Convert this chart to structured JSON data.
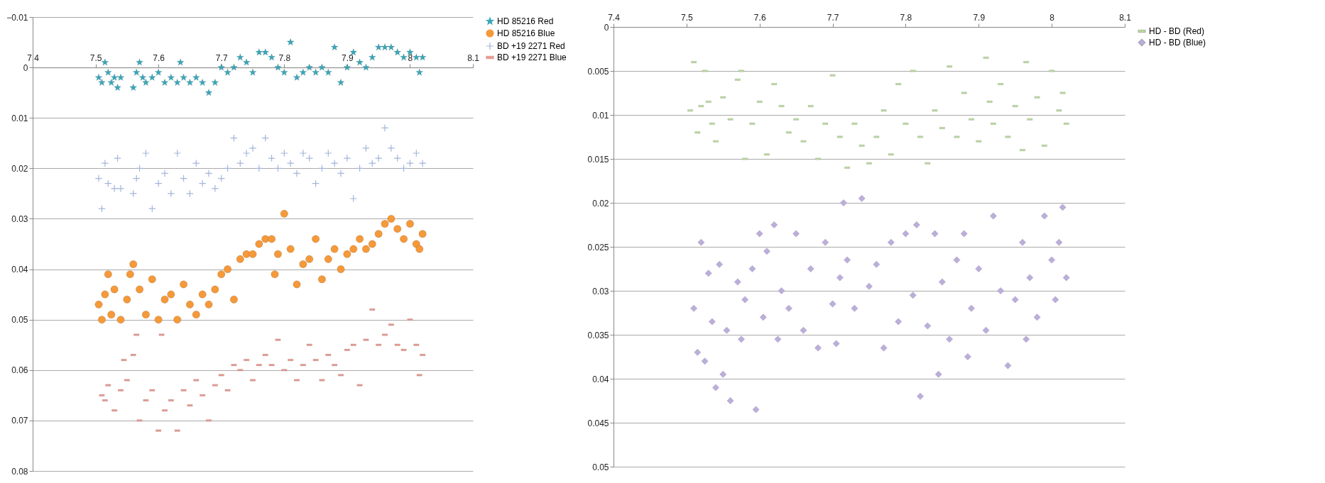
{
  "chart_data": [
    {
      "type": "scatter",
      "xlim": [
        7.4,
        8.1
      ],
      "xticks": [
        7.4,
        7.5,
        7.6,
        7.7,
        7.8,
        7.9,
        8,
        8.1
      ],
      "ylim": [
        0.08,
        -0.01
      ],
      "yticks": [
        -0.01,
        0,
        0.01,
        0.02,
        0.03,
        0.04,
        0.05,
        0.06,
        0.07,
        0.08
      ],
      "grid": "y",
      "legend": "right",
      "series": [
        {
          "name": "HD 85216 Red",
          "color": "#3aa6b9",
          "marker": "star",
          "x": [
            7.505,
            7.51,
            7.515,
            7.52,
            7.525,
            7.53,
            7.535,
            7.54,
            7.56,
            7.565,
            7.57,
            7.575,
            7.58,
            7.59,
            7.6,
            7.61,
            7.62,
            7.63,
            7.635,
            7.64,
            7.65,
            7.66,
            7.67,
            7.68,
            7.69,
            7.7,
            7.71,
            7.72,
            7.73,
            7.74,
            7.75,
            7.76,
            7.77,
            7.78,
            7.79,
            7.8,
            7.81,
            7.82,
            7.83,
            7.84,
            7.85,
            7.86,
            7.87,
            7.88,
            7.89,
            7.9,
            7.91,
            7.92,
            7.93,
            7.94,
            7.95,
            7.96,
            7.97,
            7.98,
            7.99,
            8,
            8.01,
            8.015,
            8.02
          ],
          "values": [
            0.002,
            0.003,
            -0.001,
            0.001,
            0.003,
            0.002,
            0.004,
            0.002,
            0.004,
            0.001,
            -0.001,
            0.002,
            0.003,
            0.002,
            0.001,
            0.003,
            0.002,
            0.003,
            -0.001,
            0.002,
            0.003,
            0.002,
            0.003,
            0.005,
            0.003,
            0,
            0.001,
            0,
            -0.002,
            -0.001,
            0.001,
            -0.003,
            -0.003,
            -0.002,
            0,
            0.001,
            -0.005,
            0.002,
            0.001,
            0,
            0.001,
            0,
            0.001,
            -0.004,
            0.003,
            0,
            -0.003,
            -0.001,
            0,
            -0.002,
            -0.004,
            -0.004,
            -0.004,
            -0.003,
            -0.002,
            -0.003,
            -0.002,
            0.001,
            -0.002
          ]
        },
        {
          "name": "HD 85216 Blue",
          "color": "#f5993a",
          "marker": "circle",
          "x": [
            7.505,
            7.51,
            7.515,
            7.52,
            7.525,
            7.53,
            7.54,
            7.55,
            7.555,
            7.56,
            7.57,
            7.58,
            7.59,
            7.6,
            7.61,
            7.62,
            7.63,
            7.64,
            7.65,
            7.66,
            7.67,
            7.68,
            7.69,
            7.7,
            7.71,
            7.72,
            7.73,
            7.74,
            7.75,
            7.76,
            7.77,
            7.78,
            7.785,
            7.79,
            7.8,
            7.81,
            7.82,
            7.83,
            7.84,
            7.85,
            7.86,
            7.87,
            7.88,
            7.89,
            7.9,
            7.91,
            7.92,
            7.93,
            7.94,
            7.95,
            7.96,
            7.97,
            7.98,
            7.99,
            8,
            8.01,
            8.015,
            8.02
          ],
          "values": [
            0.047,
            0.05,
            0.045,
            0.041,
            0.049,
            0.044,
            0.05,
            0.046,
            0.041,
            0.039,
            0.044,
            0.049,
            0.042,
            0.05,
            0.046,
            0.045,
            0.05,
            0.043,
            0.047,
            0.049,
            0.045,
            0.047,
            0.044,
            0.041,
            0.04,
            0.046,
            0.038,
            0.037,
            0.037,
            0.035,
            0.034,
            0.034,
            0.041,
            0.037,
            0.029,
            0.036,
            0.043,
            0.039,
            0.038,
            0.034,
            0.042,
            0.038,
            0.036,
            0.04,
            0.037,
            0.036,
            0.034,
            0.036,
            0.035,
            0.033,
            0.031,
            0.03,
            0.032,
            0.034,
            0.031,
            0.035,
            0.036,
            0.033
          ]
        },
        {
          "name": "BD +19 2271 Red",
          "color": "#a3b5da",
          "marker": "cross",
          "x": [
            7.505,
            7.51,
            7.515,
            7.52,
            7.53,
            7.535,
            7.54,
            7.56,
            7.565,
            7.57,
            7.58,
            7.59,
            7.6,
            7.61,
            7.62,
            7.63,
            7.64,
            7.65,
            7.66,
            7.67,
            7.68,
            7.69,
            7.7,
            7.71,
            7.72,
            7.73,
            7.74,
            7.75,
            7.76,
            7.77,
            7.78,
            7.79,
            7.8,
            7.81,
            7.82,
            7.83,
            7.84,
            7.85,
            7.86,
            7.87,
            7.88,
            7.89,
            7.9,
            7.91,
            7.92,
            7.93,
            7.94,
            7.95,
            7.96,
            7.97,
            7.98,
            7.99,
            8,
            8.01,
            8.02
          ],
          "values": [
            0.022,
            0.028,
            0.019,
            0.023,
            0.024,
            0.018,
            0.024,
            0.025,
            0.022,
            0.02,
            0.017,
            0.028,
            0.023,
            0.021,
            0.025,
            0.017,
            0.022,
            0.025,
            0.019,
            0.023,
            0.021,
            0.024,
            0.022,
            0.02,
            0.014,
            0.019,
            0.017,
            0.016,
            0.02,
            0.014,
            0.018,
            0.02,
            0.017,
            0.019,
            0.021,
            0.017,
            0.018,
            0.023,
            0.02,
            0.017,
            0.019,
            0.021,
            0.018,
            0.026,
            0.02,
            0.016,
            0.019,
            0.018,
            0.012,
            0.016,
            0.018,
            0.02,
            0.019,
            0.017,
            0.019
          ]
        },
        {
          "name": "BD +19 2271 Blue",
          "color": "#e79a91",
          "marker": "square",
          "x": [
            7.51,
            7.515,
            7.52,
            7.53,
            7.54,
            7.545,
            7.55,
            7.56,
            7.565,
            7.57,
            7.58,
            7.59,
            7.6,
            7.605,
            7.61,
            7.62,
            7.63,
            7.64,
            7.65,
            7.66,
            7.67,
            7.68,
            7.69,
            7.7,
            7.71,
            7.72,
            7.73,
            7.74,
            7.75,
            7.76,
            7.77,
            7.78,
            7.79,
            7.8,
            7.81,
            7.82,
            7.83,
            7.84,
            7.85,
            7.86,
            7.87,
            7.88,
            7.89,
            7.9,
            7.91,
            7.92,
            7.93,
            7.94,
            7.95,
            7.96,
            7.97,
            7.98,
            7.99,
            8,
            8.01,
            8.015,
            8.02
          ],
          "values": [
            0.065,
            0.066,
            0.063,
            0.068,
            0.064,
            0.058,
            0.062,
            0.057,
            0.053,
            0.07,
            0.066,
            0.064,
            0.072,
            0.053,
            0.068,
            0.066,
            0.072,
            0.064,
            0.067,
            0.062,
            0.065,
            0.07,
            0.063,
            0.061,
            0.064,
            0.059,
            0.06,
            0.058,
            0.062,
            0.059,
            0.057,
            0.059,
            0.054,
            0.06,
            0.058,
            0.062,
            0.059,
            0.055,
            0.058,
            0.062,
            0.057,
            0.059,
            0.061,
            0.056,
            0.055,
            0.063,
            0.054,
            0.048,
            0.055,
            0.053,
            0.051,
            0.055,
            0.056,
            0.05,
            0.055,
            0.061,
            0.057
          ]
        }
      ]
    },
    {
      "type": "scatter",
      "xlim": [
        7.4,
        8.1
      ],
      "xticks": [
        7.4,
        7.5,
        7.6,
        7.7,
        7.8,
        7.9,
        8,
        8.1
      ],
      "ylim": [
        0.05,
        0
      ],
      "yticks": [
        0,
        0.005,
        0.01,
        0.015,
        0.02,
        0.025,
        0.03,
        0.035,
        0.04,
        0.045,
        0.05
      ],
      "grid": "y",
      "legend": "right",
      "series": [
        {
          "name": "HD - BD (Red)",
          "color": "#bcd9a0",
          "marker": "square",
          "x": [
            7.505,
            7.51,
            7.515,
            7.52,
            7.525,
            7.53,
            7.535,
            7.54,
            7.55,
            7.56,
            7.57,
            7.575,
            7.58,
            7.59,
            7.6,
            7.61,
            7.62,
            7.63,
            7.64,
            7.65,
            7.66,
            7.67,
            7.68,
            7.69,
            7.7,
            7.71,
            7.72,
            7.73,
            7.74,
            7.75,
            7.76,
            7.77,
            7.78,
            7.79,
            7.8,
            7.81,
            7.82,
            7.83,
            7.84,
            7.85,
            7.86,
            7.87,
            7.88,
            7.89,
            7.9,
            7.91,
            7.915,
            7.92,
            7.93,
            7.94,
            7.95,
            7.96,
            7.965,
            7.97,
            7.98,
            7.99,
            8,
            8.01,
            8.015,
            8.02
          ],
          "values": [
            0.0095,
            0.004,
            0.012,
            0.009,
            0.005,
            0.0085,
            0.011,
            0.013,
            0.008,
            0.0105,
            0.006,
            0.005,
            0.015,
            0.011,
            0.0085,
            0.0145,
            0.0065,
            0.009,
            0.012,
            0.0105,
            0.013,
            0.009,
            0.015,
            0.011,
            0.0055,
            0.0125,
            0.016,
            0.011,
            0.0135,
            0.0155,
            0.0125,
            0.0095,
            0.0145,
            0.0065,
            0.011,
            0.005,
            0.0125,
            0.0155,
            0.0095,
            0.0115,
            0.0045,
            0.0125,
            0.0075,
            0.0105,
            0.013,
            0.0035,
            0.0085,
            0.011,
            0.0065,
            0.0125,
            0.009,
            0.014,
            0.004,
            0.0105,
            0.008,
            0.0135,
            0.005,
            0.0095,
            0.0075,
            0.011
          ]
        },
        {
          "name": "HD - BD (Blue)",
          "color": "#bcaedb",
          "marker": "diamond",
          "x": [
            7.51,
            7.515,
            7.52,
            7.525,
            7.53,
            7.535,
            7.54,
            7.545,
            7.55,
            7.555,
            7.56,
            7.57,
            7.575,
            7.58,
            7.59,
            7.595,
            7.6,
            7.605,
            7.61,
            7.62,
            7.625,
            7.63,
            7.64,
            7.65,
            7.66,
            7.67,
            7.68,
            7.69,
            7.7,
            7.705,
            7.71,
            7.715,
            7.72,
            7.73,
            7.74,
            7.75,
            7.76,
            7.77,
            7.78,
            7.79,
            7.8,
            7.81,
            7.815,
            7.82,
            7.83,
            7.84,
            7.845,
            7.85,
            7.86,
            7.87,
            7.88,
            7.885,
            7.89,
            7.9,
            7.91,
            7.92,
            7.93,
            7.94,
            7.95,
            7.96,
            7.965,
            7.97,
            7.98,
            7.99,
            8,
            8.005,
            8.01,
            8.015,
            8.02
          ],
          "values": [
            0.032,
            0.037,
            0.0245,
            0.038,
            0.028,
            0.0335,
            0.041,
            0.027,
            0.0395,
            0.0345,
            0.0425,
            0.029,
            0.0355,
            0.031,
            0.0275,
            0.0435,
            0.0235,
            0.033,
            0.0255,
            0.0225,
            0.0355,
            0.03,
            0.032,
            0.0235,
            0.0345,
            0.0275,
            0.0365,
            0.0245,
            0.0315,
            0.036,
            0.0285,
            0.02,
            0.0265,
            0.032,
            0.0195,
            0.0295,
            0.027,
            0.0365,
            0.0245,
            0.0335,
            0.0235,
            0.0305,
            0.0225,
            0.042,
            0.034,
            0.0235,
            0.0395,
            0.029,
            0.0355,
            0.0265,
            0.0235,
            0.0375,
            0.032,
            0.0275,
            0.0345,
            0.0215,
            0.03,
            0.0385,
            0.031,
            0.0245,
            0.0355,
            0.0285,
            0.033,
            0.0215,
            0.0265,
            0.031,
            0.0245,
            0.0205,
            0.0285
          ]
        }
      ]
    }
  ]
}
